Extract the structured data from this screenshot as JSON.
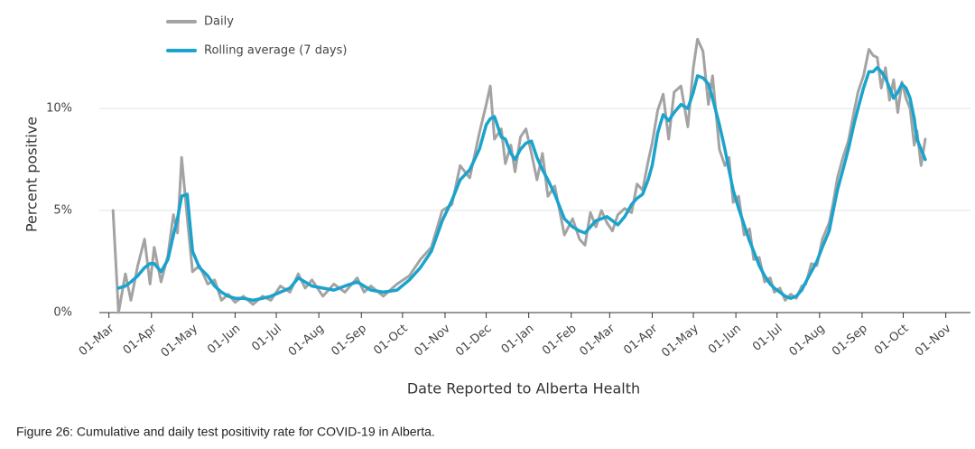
{
  "chart_data": {
    "type": "line",
    "x_label": "Date Reported to Alberta Health",
    "y_label": "Percent positive",
    "caption": "Figure 26: Cumulative and daily test positivity rate for COVID-19 in Alberta.",
    "legend": "top-left",
    "grid": true,
    "xlim": [
      -7,
      628
    ],
    "ylim": [
      0,
      13.5
    ],
    "yticks": [
      {
        "value": 0,
        "label": "0%"
      },
      {
        "value": 5,
        "label": "5%"
      },
      {
        "value": 10,
        "label": "10%"
      }
    ],
    "xticks": [
      {
        "value": 0,
        "label": "01-Mar"
      },
      {
        "value": 31,
        "label": "01-Apr"
      },
      {
        "value": 61,
        "label": "01-May"
      },
      {
        "value": 92,
        "label": "01-Jun"
      },
      {
        "value": 122,
        "label": "01-Jul"
      },
      {
        "value": 153,
        "label": "01-Aug"
      },
      {
        "value": 184,
        "label": "01-Sep"
      },
      {
        "value": 214,
        "label": "01-Oct"
      },
      {
        "value": 245,
        "label": "01-Nov"
      },
      {
        "value": 275,
        "label": "01-Dec"
      },
      {
        "value": 306,
        "label": "01-Jan"
      },
      {
        "value": 337,
        "label": "01-Feb"
      },
      {
        "value": 365,
        "label": "01-Mar"
      },
      {
        "value": 396,
        "label": "01-Apr"
      },
      {
        "value": 426,
        "label": "01-May"
      },
      {
        "value": 457,
        "label": "01-Jun"
      },
      {
        "value": 487,
        "label": "01-Jul"
      },
      {
        "value": 518,
        "label": "01-Aug"
      },
      {
        "value": 549,
        "label": "01-Sep"
      },
      {
        "value": 579,
        "label": "01-Oct"
      },
      {
        "value": 610,
        "label": "01-Nov"
      }
    ],
    "x": [
      3,
      7,
      12,
      16,
      21,
      26,
      30,
      33,
      38,
      43,
      47,
      50,
      53,
      57,
      61,
      66,
      72,
      77,
      82,
      87,
      92,
      98,
      105,
      112,
      118,
      125,
      132,
      138,
      143,
      148,
      156,
      164,
      172,
      181,
      186,
      191,
      200,
      210,
      219,
      227,
      235,
      243,
      250,
      256,
      263,
      270,
      275,
      278,
      281,
      286,
      289,
      293,
      296,
      300,
      304,
      308,
      312,
      316,
      320,
      325,
      332,
      338,
      343,
      347,
      351,
      355,
      359,
      363,
      367,
      371,
      376,
      381,
      385,
      389,
      393,
      396,
      400,
      404,
      408,
      412,
      417,
      422,
      426,
      429,
      433,
      437,
      440,
      445,
      449,
      452,
      455,
      459,
      463,
      467,
      470,
      474,
      478,
      482,
      485,
      489,
      493,
      497,
      501,
      505,
      508,
      512,
      516,
      520,
      525,
      528,
      531,
      535,
      539,
      543,
      546,
      550,
      554,
      557,
      560,
      563,
      566,
      569,
      572,
      575,
      578,
      581,
      584,
      587,
      589,
      592,
      595
    ],
    "series": [
      {
        "name": "Daily",
        "color": "#a3a3a3",
        "values": [
          5.0,
          0.0,
          1.9,
          0.6,
          2.3,
          3.6,
          1.4,
          3.2,
          1.5,
          2.8,
          4.8,
          3.9,
          7.6,
          4.7,
          2.0,
          2.3,
          1.4,
          1.6,
          0.6,
          0.9,
          0.5,
          0.8,
          0.4,
          0.8,
          0.6,
          1.3,
          1.0,
          1.9,
          1.2,
          1.6,
          0.8,
          1.4,
          1.0,
          1.7,
          1.0,
          1.3,
          0.8,
          1.4,
          1.8,
          2.6,
          3.2,
          5.0,
          5.3,
          7.2,
          6.6,
          8.8,
          10.2,
          11.1,
          8.5,
          9.0,
          7.3,
          8.2,
          6.9,
          8.6,
          9.0,
          7.8,
          6.5,
          7.8,
          5.7,
          6.2,
          3.8,
          4.6,
          3.6,
          3.3,
          4.9,
          4.2,
          5.0,
          4.4,
          4.0,
          4.8,
          5.1,
          4.9,
          6.3,
          6.0,
          7.4,
          8.3,
          9.9,
          10.7,
          8.5,
          10.8,
          11.1,
          9.1,
          12.0,
          13.4,
          12.8,
          10.2,
          11.6,
          8.0,
          7.2,
          7.6,
          5.4,
          5.7,
          3.8,
          4.1,
          2.6,
          2.7,
          1.5,
          1.7,
          1.0,
          1.2,
          0.6,
          0.9,
          0.7,
          1.3,
          1.4,
          2.4,
          2.3,
          3.6,
          4.4,
          5.4,
          6.6,
          7.6,
          8.4,
          9.8,
          10.8,
          11.6,
          12.9,
          12.6,
          12.5,
          11.0,
          12.0,
          10.4,
          11.4,
          9.8,
          11.3,
          10.5,
          10.0,
          8.2,
          8.9,
          7.2,
          8.5
        ]
      },
      {
        "name": "Rolling average (7 days)",
        "color": "#1aa3cc",
        "values": [
          null,
          1.2,
          1.3,
          1.5,
          1.8,
          2.2,
          2.4,
          2.4,
          2.0,
          2.6,
          3.8,
          4.6,
          5.7,
          5.8,
          3.0,
          2.2,
          1.8,
          1.3,
          1.0,
          0.8,
          0.7,
          0.7,
          0.6,
          0.7,
          0.8,
          1.0,
          1.2,
          1.7,
          1.5,
          1.3,
          1.2,
          1.1,
          1.3,
          1.5,
          1.3,
          1.1,
          1.0,
          1.1,
          1.6,
          2.2,
          3.0,
          4.5,
          5.5,
          6.5,
          7.0,
          8.0,
          9.2,
          9.5,
          9.6,
          8.6,
          8.5,
          7.8,
          7.5,
          8.0,
          8.3,
          8.4,
          7.6,
          7.0,
          6.5,
          5.8,
          4.6,
          4.2,
          4.0,
          3.9,
          4.2,
          4.5,
          4.6,
          4.7,
          4.5,
          4.3,
          4.7,
          5.3,
          5.6,
          5.8,
          6.5,
          7.2,
          8.8,
          9.7,
          9.4,
          9.8,
          10.2,
          10.0,
          10.8,
          11.6,
          11.5,
          11.2,
          10.5,
          9.2,
          8.0,
          7.0,
          6.0,
          5.1,
          4.3,
          3.5,
          3.0,
          2.3,
          1.8,
          1.4,
          1.2,
          1.0,
          0.8,
          0.7,
          0.8,
          1.1,
          1.5,
          2.0,
          2.5,
          3.2,
          4.0,
          5.0,
          6.0,
          7.0,
          8.0,
          9.2,
          10.0,
          11.0,
          11.8,
          11.8,
          12.0,
          11.8,
          11.5,
          11.0,
          10.5,
          10.8,
          11.2,
          11.0,
          10.5,
          9.5,
          8.5,
          8.0,
          7.5
        ]
      }
    ]
  }
}
